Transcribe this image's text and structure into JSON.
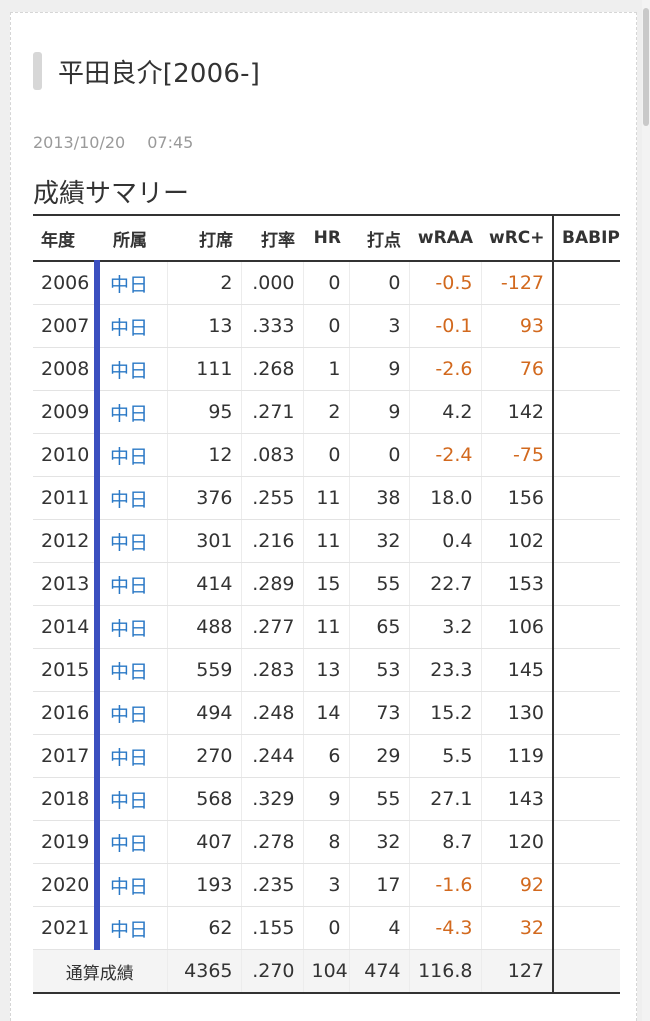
{
  "post": {
    "title": "平田良介[2006-]",
    "date": "2013/10/20",
    "time": "07:45"
  },
  "section": {
    "title": "成績サマリー"
  },
  "table": {
    "headers": [
      "年度",
      "所属",
      "打席",
      "打率",
      "HR",
      "打点",
      "wRAA",
      "wRC+",
      "BABIP"
    ],
    "rows": [
      {
        "year": "2006",
        "team": "中日",
        "pa": "2",
        "avg": ".000",
        "hr": "0",
        "rbi": "0",
        "wraa": "-0.5",
        "wrc": "-127",
        "babip": ""
      },
      {
        "year": "2007",
        "team": "中日",
        "pa": "13",
        "avg": ".333",
        "hr": "0",
        "rbi": "3",
        "wraa": "-0.1",
        "wrc": "93",
        "babip": ""
      },
      {
        "year": "2008",
        "team": "中日",
        "pa": "111",
        "avg": ".268",
        "hr": "1",
        "rbi": "9",
        "wraa": "-2.6",
        "wrc": "76",
        "babip": ""
      },
      {
        "year": "2009",
        "team": "中日",
        "pa": "95",
        "avg": ".271",
        "hr": "2",
        "rbi": "9",
        "wraa": "4.2",
        "wrc": "142",
        "babip": ""
      },
      {
        "year": "2010",
        "team": "中日",
        "pa": "12",
        "avg": ".083",
        "hr": "0",
        "rbi": "0",
        "wraa": "-2.4",
        "wrc": "-75",
        "babip": ""
      },
      {
        "year": "2011",
        "team": "中日",
        "pa": "376",
        "avg": ".255",
        "hr": "11",
        "rbi": "38",
        "wraa": "18.0",
        "wrc": "156",
        "babip": ""
      },
      {
        "year": "2012",
        "team": "中日",
        "pa": "301",
        "avg": ".216",
        "hr": "11",
        "rbi": "32",
        "wraa": "0.4",
        "wrc": "102",
        "babip": ""
      },
      {
        "year": "2013",
        "team": "中日",
        "pa": "414",
        "avg": ".289",
        "hr": "15",
        "rbi": "55",
        "wraa": "22.7",
        "wrc": "153",
        "babip": ""
      },
      {
        "year": "2014",
        "team": "中日",
        "pa": "488",
        "avg": ".277",
        "hr": "11",
        "rbi": "65",
        "wraa": "3.2",
        "wrc": "106",
        "babip": ""
      },
      {
        "year": "2015",
        "team": "中日",
        "pa": "559",
        "avg": ".283",
        "hr": "13",
        "rbi": "53",
        "wraa": "23.3",
        "wrc": "145",
        "babip": ""
      },
      {
        "year": "2016",
        "team": "中日",
        "pa": "494",
        "avg": ".248",
        "hr": "14",
        "rbi": "73",
        "wraa": "15.2",
        "wrc": "130",
        "babip": ""
      },
      {
        "year": "2017",
        "team": "中日",
        "pa": "270",
        "avg": ".244",
        "hr": "6",
        "rbi": "29",
        "wraa": "5.5",
        "wrc": "119",
        "babip": ""
      },
      {
        "year": "2018",
        "team": "中日",
        "pa": "568",
        "avg": ".329",
        "hr": "9",
        "rbi": "55",
        "wraa": "27.1",
        "wrc": "143",
        "babip": ""
      },
      {
        "year": "2019",
        "team": "中日",
        "pa": "407",
        "avg": ".278",
        "hr": "8",
        "rbi": "32",
        "wraa": "8.7",
        "wrc": "120",
        "babip": ""
      },
      {
        "year": "2020",
        "team": "中日",
        "pa": "193",
        "avg": ".235",
        "hr": "3",
        "rbi": "17",
        "wraa": "-1.6",
        "wrc": "92",
        "babip": ""
      },
      {
        "year": "2021",
        "team": "中日",
        "pa": "62",
        "avg": ".155",
        "hr": "0",
        "rbi": "4",
        "wraa": "-4.3",
        "wrc": "32",
        "babip": ""
      }
    ],
    "total": {
      "label": "通算成績",
      "pa": "4365",
      "avg": ".270",
      "hr": "104",
      "rbi": "474",
      "wraa": "116.8",
      "wrc": "127",
      "babip": ""
    }
  },
  "colors": {
    "team_link": "#2a78c6",
    "team_stripe": "#3b4fbf",
    "below_average": "#d2691e"
  }
}
